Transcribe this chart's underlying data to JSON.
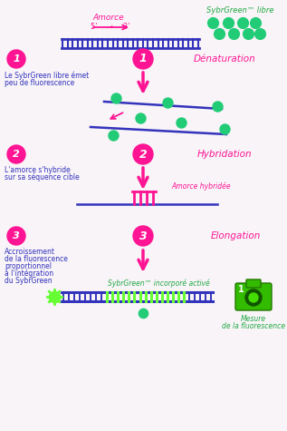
{
  "bg_color": "#f8f4f8",
  "magenta": "#FF1493",
  "blue": "#3333BB",
  "green": "#22CC77",
  "bright_green": "#66FF33",
  "label_green": "#22AA44",
  "amorce_label": "Amorce",
  "amorce_53": "5’    →    3’",
  "sybrgreen_libre_label": "SybrGreen™ libre",
  "step1_label": "Dénaturation",
  "step1_desc_l1": "Le SybrGreen libre émet",
  "step1_desc_l2": "peu de fluorescence",
  "step2_label": "Hybridation",
  "step2_desc_l1": "L'amorce s'hybride",
  "step2_desc_l2": "sur sa séquence cible",
  "step2_annot": "Amorce hybridée",
  "step3_label": "Elongation",
  "step3_desc_l1": "Accroissement",
  "step3_desc_l2": "de la fluorescence",
  "step3_desc_l3": "proportionnel",
  "step3_desc_l4": "à l'intégration",
  "step3_desc_l5": "du SybrGreen",
  "step3_annot": "SybrGreen™ incorporé activé",
  "mesure_l1": "Mesure",
  "mesure_l2": "de la fluorescence"
}
